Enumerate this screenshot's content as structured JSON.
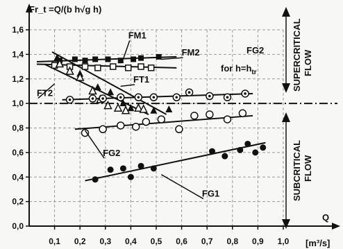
{
  "chart_data": {
    "type": "scatter",
    "title": "",
    "ylabel": "Fr_t =Q/(b h√g h)",
    "xlabel": "Q",
    "xunit": "[m³/s]",
    "xlim": [
      0,
      1.0
    ],
    "ylim": [
      0,
      1.6
    ],
    "xticks": [
      0.1,
      0.2,
      0.3,
      0.4,
      0.5,
      0.6,
      0.7,
      0.8,
      0.9,
      1.0
    ],
    "xtick_labels": [
      "0,1",
      "0,2",
      "0,3",
      "0,4",
      "0,5",
      "0,6",
      "0,7",
      "0,8",
      "0,9",
      "1,0"
    ],
    "yticks": [
      0,
      0.2,
      0.4,
      0.6,
      0.8,
      1.0,
      1.2,
      1.4,
      1.6
    ],
    "ytick_labels": [
      "0,0",
      "0,2",
      "0,4",
      "0,6",
      "0,8",
      "1,0",
      "1,2",
      "1,4",
      "1,6"
    ],
    "reference_line": 1.0,
    "grid": true,
    "regions": [
      {
        "name": "supercritical",
        "label_lines": [
          "SUPERCRITICAL",
          "FLOW"
        ]
      },
      {
        "name": "subcritical",
        "label_lines": [
          "SUBCRITICAL",
          "FLOW"
        ]
      }
    ],
    "annotations": {
      "fg2_title": "FG2",
      "fg2_subtitle": "for h=h",
      "fg2_subscript": "tr"
    },
    "series": [
      {
        "name": "FM1",
        "marker": "filled-square",
        "points": [
          [
            0.12,
            1.35
          ],
          [
            0.18,
            1.36
          ],
          [
            0.22,
            1.35
          ],
          [
            0.26,
            1.36
          ],
          [
            0.31,
            1.36
          ],
          [
            0.36,
            1.35
          ],
          [
            0.41,
            1.36
          ],
          [
            0.44,
            1.37
          ],
          [
            0.51,
            1.38
          ]
        ],
        "fit": [
          [
            0.03,
            1.34
          ],
          [
            0.58,
            1.38
          ]
        ]
      },
      {
        "name": "FM2",
        "marker": "open-square",
        "points": [
          [
            0.1,
            1.31
          ],
          [
            0.16,
            1.3
          ],
          [
            0.22,
            1.3
          ],
          [
            0.27,
            1.29
          ],
          [
            0.33,
            1.3
          ],
          [
            0.39,
            1.29
          ],
          [
            0.44,
            1.3
          ],
          [
            0.48,
            1.29
          ]
        ],
        "fit": [
          [
            0.03,
            1.32
          ],
          [
            0.58,
            1.29
          ]
        ]
      },
      {
        "name": "FT1",
        "marker": "filled-triangle",
        "points": [
          [
            0.11,
            1.37
          ],
          [
            0.2,
            1.24
          ],
          [
            0.27,
            1.13
          ],
          [
            0.32,
            1.09
          ],
          [
            0.37,
            1.0
          ],
          [
            0.4,
            0.96
          ],
          [
            0.45,
            0.95
          ],
          [
            0.49,
            0.94
          ],
          [
            0.55,
            0.95
          ]
        ],
        "fit": [
          [
            0.09,
            1.42
          ],
          [
            0.54,
            0.91
          ]
        ]
      },
      {
        "name": "FT2",
        "marker": "open-triangle",
        "points": [
          [
            0.12,
            1.32
          ],
          [
            0.16,
            1.26
          ],
          [
            0.2,
            1.21
          ],
          [
            0.25,
            1.1
          ],
          [
            0.28,
            1.03
          ],
          [
            0.31,
            0.98
          ],
          [
            0.35,
            0.96
          ],
          [
            0.38,
            0.94
          ],
          [
            0.43,
            0.96
          ],
          [
            0.45,
            0.95
          ]
        ],
        "fit": [
          [
            0.06,
            1.32
          ],
          [
            0.47,
            0.91
          ]
        ]
      },
      {
        "name": "FG2 (for h=htr)",
        "marker": "circle-dot",
        "points": [
          [
            0.16,
            1.03
          ],
          [
            0.25,
            1.04
          ],
          [
            0.29,
            1.04
          ],
          [
            0.36,
            1.05
          ],
          [
            0.43,
            1.05
          ],
          [
            0.49,
            1.05
          ],
          [
            0.58,
            1.05
          ],
          [
            0.63,
            1.09
          ],
          [
            0.71,
            1.06
          ],
          [
            0.78,
            1.05
          ],
          [
            0.85,
            1.08
          ]
        ],
        "fit": [
          [
            0.13,
            1.03
          ],
          [
            0.88,
            1.08
          ]
        ]
      },
      {
        "name": "FG2",
        "marker": "open-circle",
        "points": [
          [
            0.22,
            0.76
          ],
          [
            0.29,
            0.79
          ],
          [
            0.36,
            0.82
          ],
          [
            0.42,
            0.81
          ],
          [
            0.46,
            0.85
          ],
          [
            0.52,
            0.87
          ],
          [
            0.59,
            0.79
          ],
          [
            0.65,
            0.9
          ],
          [
            0.71,
            0.91
          ],
          [
            0.78,
            0.87
          ],
          [
            0.84,
            0.92
          ]
        ],
        "fit": [
          [
            0.18,
            0.79
          ],
          [
            0.88,
            0.9
          ]
        ]
      },
      {
        "name": "FG1",
        "marker": "filled-circle",
        "points": [
          [
            0.26,
            0.38
          ],
          [
            0.32,
            0.46
          ],
          [
            0.37,
            0.47
          ],
          [
            0.4,
            0.4
          ],
          [
            0.44,
            0.49
          ],
          [
            0.49,
            0.47
          ],
          [
            0.72,
            0.61
          ],
          [
            0.77,
            0.57
          ],
          [
            0.83,
            0.62
          ],
          [
            0.86,
            0.67
          ],
          [
            0.89,
            0.6
          ],
          [
            0.92,
            0.64
          ]
        ],
        "fit": [
          [
            0.22,
            0.37
          ],
          [
            0.93,
            0.68
          ]
        ]
      }
    ],
    "series_labels": [
      {
        "name": "FM1",
        "x": 0.39,
        "y": 1.53,
        "to": [
          0.37,
          1.36
        ]
      },
      {
        "name": "FM2",
        "x": 0.6,
        "y": 1.39,
        "to": [
          0.52,
          1.36
        ]
      },
      {
        "name": "FT1",
        "x": 0.41,
        "y": 1.17,
        "to": [
          0.36,
          1.14
        ]
      },
      {
        "name": "FT2",
        "x": 0.03,
        "y": 1.06,
        "to": [
          0.1,
          1.16
        ]
      },
      {
        "name": "FG2",
        "x": 0.29,
        "y": 0.57,
        "to": [
          0.22,
          0.78
        ]
      },
      {
        "name": "FG1",
        "x": 0.68,
        "y": 0.24,
        "to": [
          0.52,
          0.42
        ]
      }
    ]
  }
}
